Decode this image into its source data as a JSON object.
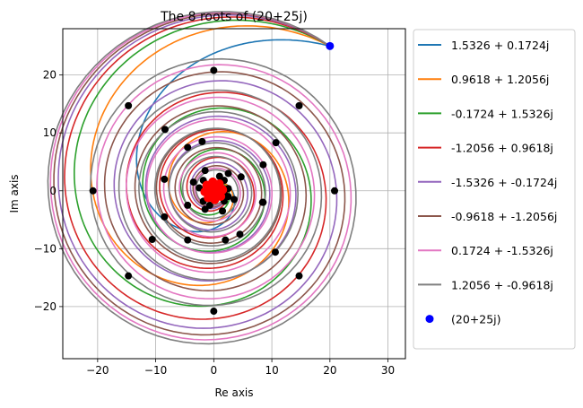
{
  "chart_data": {
    "type": "line",
    "title": "The 8 roots of (20+25j)",
    "xlabel": "Re axis",
    "ylabel": "Im axis",
    "xlim": [
      -26,
      33
    ],
    "ylim": [
      -29,
      28
    ],
    "xticks": [
      -20,
      -10,
      0,
      10,
      20,
      30
    ],
    "yticks": [
      -20,
      -10,
      0,
      10,
      20
    ],
    "grid": true,
    "legend_position": "outside-right",
    "start_point": {
      "name": "(20+25j)",
      "x": 20,
      "y": 25,
      "color": "#0000ff"
    },
    "series": [
      {
        "name": "1.5326 + 0.1724j",
        "root": [
          1.5326,
          0.1724
        ],
        "k": 0,
        "color": "#1f77b4"
      },
      {
        "name": "0.9618 + 1.2056j",
        "root": [
          0.9618,
          1.2056
        ],
        "k": 1,
        "color": "#ff7f0e"
      },
      {
        "name": "-0.1724 + 1.5326j",
        "root": [
          -0.1724,
          1.5326
        ],
        "k": 2,
        "color": "#2ca02c"
      },
      {
        "name": "-1.2056 + 0.9618j",
        "root": [
          -1.2056,
          0.9618
        ],
        "k": 3,
        "color": "#d62728"
      },
      {
        "name": "-1.5326 + -0.1724j",
        "root": [
          -1.5326,
          -0.1724
        ],
        "k": 4,
        "color": "#9467bd"
      },
      {
        "name": "-0.9618 + -1.2056j",
        "root": [
          -0.9618,
          -1.2056
        ],
        "k": 5,
        "color": "#8c564b"
      },
      {
        "name": "0.1724 + -1.5326j",
        "root": [
          0.1724,
          -1.5326
        ],
        "k": 6,
        "color": "#e377c2"
      },
      {
        "name": "1.2056 + -0.9618j",
        "root": [
          1.2056,
          -0.9618
        ],
        "k": 7,
        "color": "#7f7f7f"
      }
    ],
    "marker_points": [
      [
        20,
        25
      ],
      [
        10.7,
        8.3
      ],
      [
        4.7,
        2.4
      ],
      [
        2.5,
        0.4
      ],
      [
        1.8,
        -0.5
      ],
      [
        14.7,
        14.7
      ],
      [
        20.8,
        0
      ],
      [
        14.7,
        -14.7
      ],
      [
        0,
        -20.8
      ],
      [
        -14.7,
        -14.7
      ],
      [
        -20.8,
        0
      ],
      [
        -14.7,
        14.7
      ],
      [
        0,
        20.8
      ],
      [
        8.5,
        4.5
      ],
      [
        -2,
        8.5
      ],
      [
        -8.5,
        2
      ],
      [
        -4.5,
        -8.5
      ],
      [
        8.5,
        -2
      ],
      [
        2,
        -8.5
      ],
      [
        -8.5,
        -4.5
      ],
      [
        -4.5,
        7.5
      ],
      [
        10.6,
        -10.6
      ],
      [
        -10.6,
        -8.4
      ],
      [
        -8.4,
        10.6
      ],
      [
        8.4,
        -2
      ],
      [
        -4.5,
        -2.5
      ],
      [
        4.5,
        -7.5
      ],
      [
        -1.5,
        3.5
      ],
      [
        -3.5,
        1.5
      ],
      [
        2.5,
        3
      ],
      [
        1.5,
        -3.5
      ],
      [
        3.5,
        -1.5
      ],
      [
        -1.5,
        -3.2
      ],
      [
        -2.5,
        0.5
      ],
      [
        2.5,
        -1
      ],
      [
        1,
        2.5
      ],
      [
        -0.7,
        -2.5
      ],
      [
        1.8,
        1.8
      ],
      [
        -1.8,
        1.8
      ],
      [
        -1.8,
        -1.8
      ],
      [
        1.8,
        -1.8
      ]
    ],
    "endpoints_color": "#ff0000"
  }
}
